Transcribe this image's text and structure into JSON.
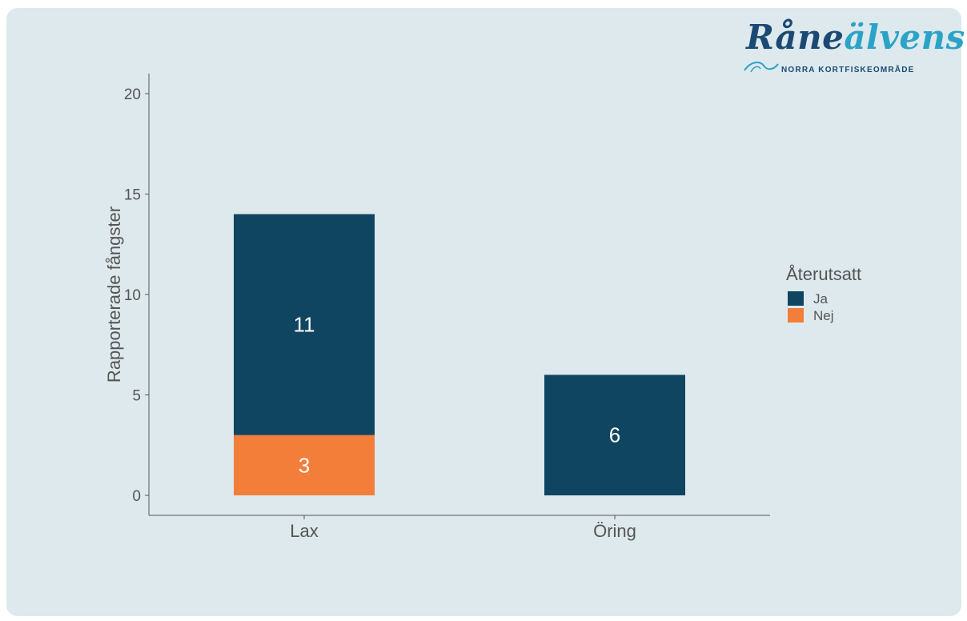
{
  "logo": {
    "word_part1": "Råne",
    "word_part2": "älvens",
    "subtitle": "NORRA KORTFISKEOMRÅDE"
  },
  "colors": {
    "background": "#dde9ec",
    "ja": "#0f4560",
    "nej": "#f27e3a",
    "logo_dark": "#1a4a74",
    "logo_light": "#2ba3c7"
  },
  "chart_data": {
    "type": "bar",
    "stacked": true,
    "categories": [
      "Lax",
      "Öring"
    ],
    "series": [
      {
        "name": "Nej",
        "values": [
          3,
          0
        ],
        "color": "#f27e3a"
      },
      {
        "name": "Ja",
        "values": [
          11,
          6
        ],
        "color": "#0f4560"
      }
    ],
    "data_labels": [
      {
        "category": "Lax",
        "series": "Nej",
        "text": "3"
      },
      {
        "category": "Lax",
        "series": "Ja",
        "text": "11"
      },
      {
        "category": "Öring",
        "series": "Ja",
        "text": "6"
      }
    ],
    "ylabel": "Rapporterade fångster",
    "xlabel": "",
    "ylim": [
      0,
      20
    ],
    "yticks": [
      0,
      5,
      10,
      15,
      20
    ],
    "grid": false,
    "legend": {
      "title": "Återutsatt",
      "entries": [
        {
          "label": "Ja",
          "color": "#0f4560"
        },
        {
          "label": "Nej",
          "color": "#f27e3a"
        }
      ],
      "position": "right"
    }
  }
}
